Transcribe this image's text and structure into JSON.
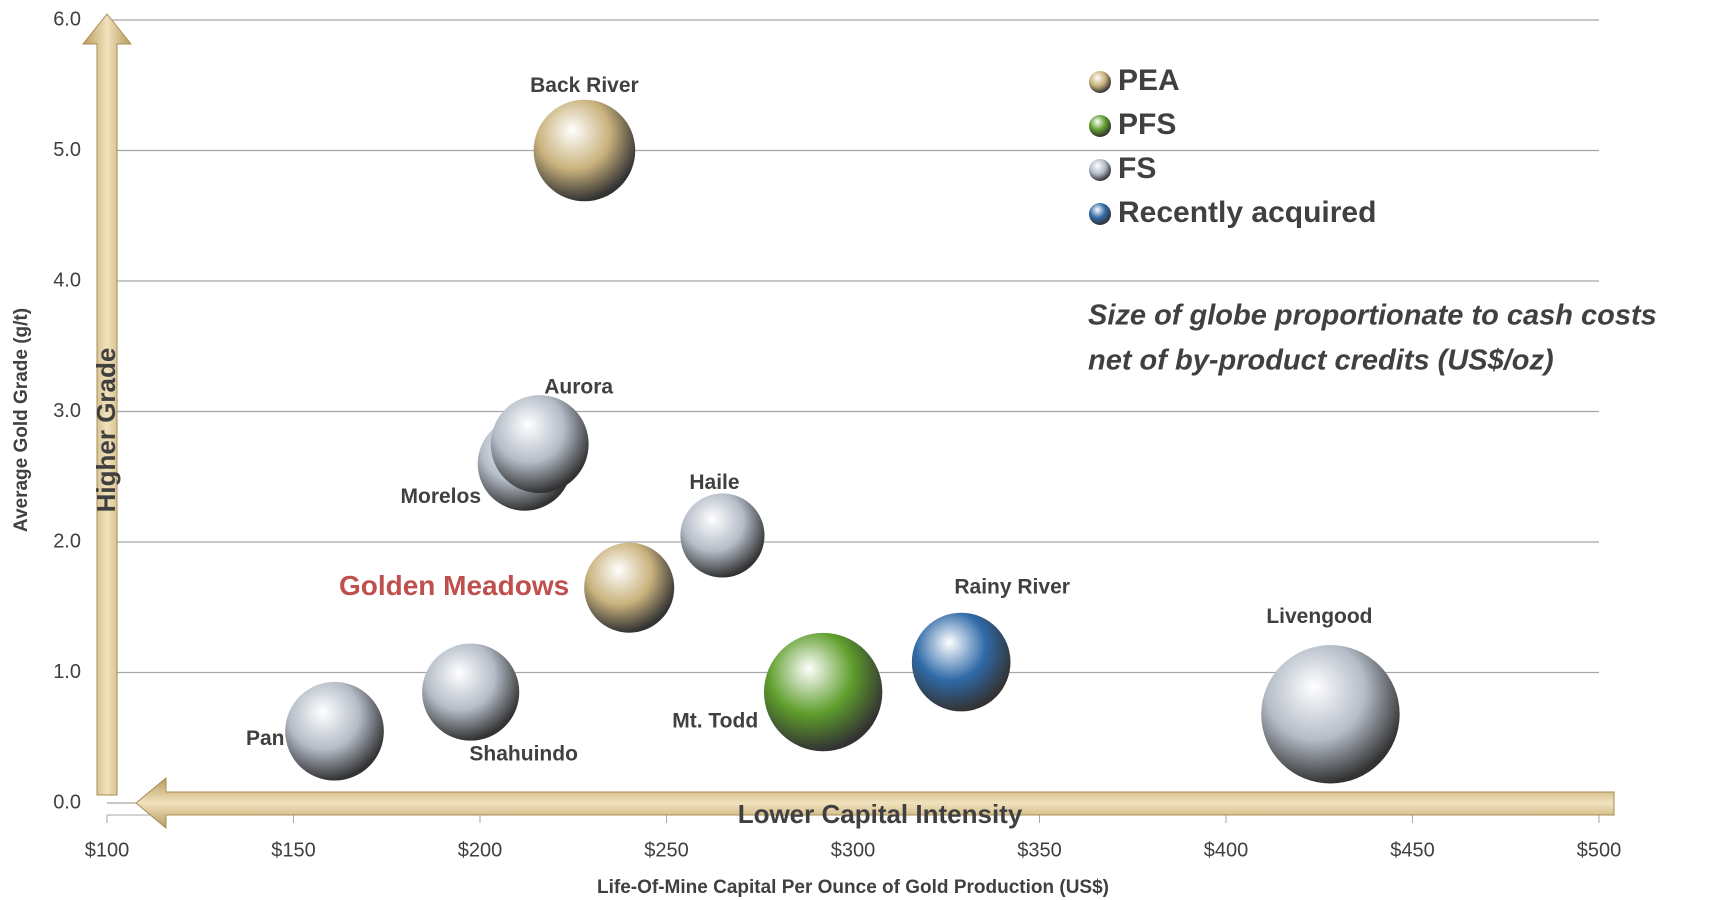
{
  "chart_data": {
    "type": "bubble",
    "x_label": "Life-Of-Mine Capital Per Ounce of Gold Production (US$)",
    "y_label": "Average Gold Grade (g/t)",
    "y_arrow_label": "Higher Grade",
    "x_arrow_label": "Lower Capital Intensity",
    "note": [
      "Size of globe proportionate to cash costs",
      "net of by-product credits (US$/oz)"
    ],
    "xlim": [
      100,
      500
    ],
    "ylim": [
      0,
      6
    ],
    "xticks": [
      {
        "value": 100,
        "label": "$100"
      },
      {
        "value": 150,
        "label": "$150"
      },
      {
        "value": 200,
        "label": "$200"
      },
      {
        "value": 250,
        "label": "$250"
      },
      {
        "value": 300,
        "label": "$300"
      },
      {
        "value": 350,
        "label": "$350"
      },
      {
        "value": 400,
        "label": "$400"
      },
      {
        "value": 450,
        "label": "$450"
      },
      {
        "value": 500,
        "label": "$500"
      }
    ],
    "yticks": [
      {
        "value": 0,
        "label": "0.0"
      },
      {
        "value": 1,
        "label": "1.0"
      },
      {
        "value": 2,
        "label": "2.0"
      },
      {
        "value": 3,
        "label": "3.0"
      },
      {
        "value": 4,
        "label": "4.0"
      },
      {
        "value": 5,
        "label": "5.0"
      },
      {
        "value": 6,
        "label": "6.0"
      }
    ],
    "grid": true,
    "legend": "upper right",
    "series": [
      {
        "name": "PEA",
        "color": "#c9b27c",
        "labels": [
          "Back River",
          "Golden Meadows"
        ],
        "label_colors": [
          "#404040",
          "#c0504d"
        ],
        "x": [
          228,
          240
        ],
        "values": [
          5.0,
          1.65
        ],
        "sizes": [
          700,
          550
        ]
      },
      {
        "name": "PFS",
        "color": "#5f9e2c",
        "labels": [
          "Mt. Todd"
        ],
        "label_colors": [
          "#404040"
        ],
        "x": [
          292
        ],
        "values": [
          0.85
        ],
        "sizes": [
          950
        ]
      },
      {
        "name": "FS",
        "color": "#b4bcc8",
        "labels": [
          "Morelos",
          "Aurora",
          "Haile",
          "Pan",
          "Shahuindo",
          "Livengood"
        ],
        "label_colors": [
          "#404040",
          "#404040",
          "#404040",
          "#404040",
          "#404040",
          "#404040"
        ],
        "x": [
          212,
          216,
          265,
          161,
          197.5,
          428
        ],
        "values": [
          2.6,
          2.75,
          2.05,
          0.55,
          0.85,
          0.68
        ],
        "sizes": [
          600,
          650,
          480,
          660,
          640,
          1300
        ]
      },
      {
        "name": "Recently acquired",
        "color": "#2f6aa8",
        "labels": [
          "Rainy River"
        ],
        "label_colors": [
          "#404040"
        ],
        "x": [
          329
        ],
        "values": [
          1.08
        ],
        "sizes": [
          660
        ]
      }
    ]
  }
}
